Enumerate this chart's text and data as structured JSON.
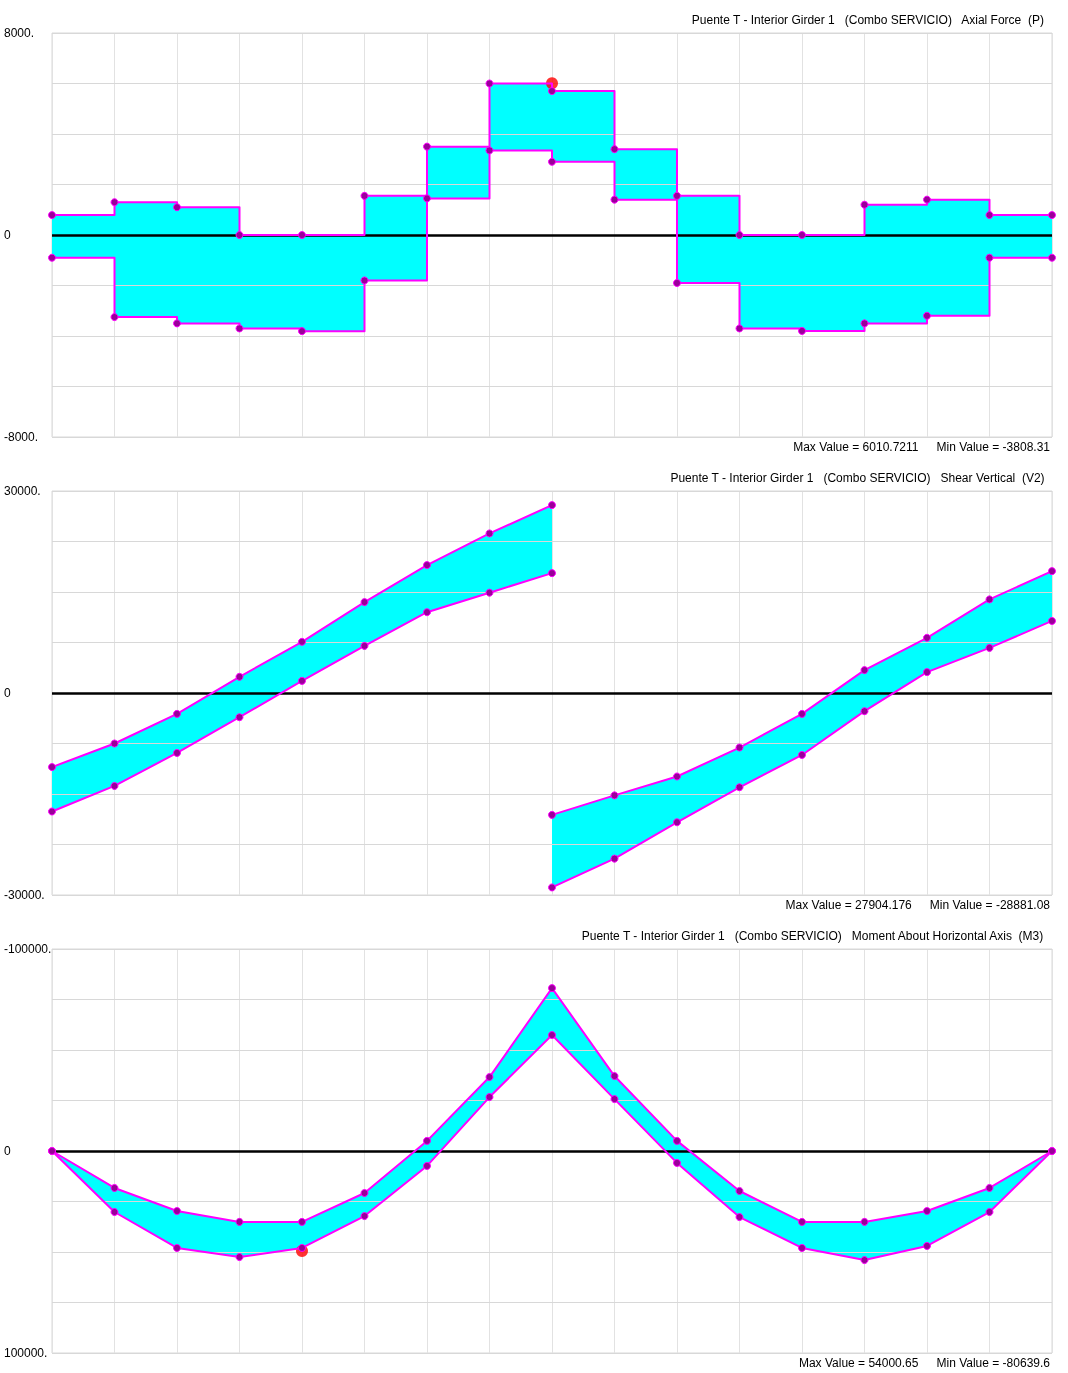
{
  "chart_data": [
    {
      "type": "step",
      "title": "Puente T - Interior Girder 1   (Combo SERVICIO)   Axial Force  (P)",
      "annotations": [
        "Max Value = 6010.7211",
        "Min Value = -3808.31"
      ],
      "categories": [
        null,
        null,
        null,
        null,
        null,
        null,
        null,
        null,
        null,
        null,
        null,
        null,
        null,
        null,
        null,
        null,
        null
      ],
      "ylim": [
        -8000,
        8000
      ],
      "yticks": [
        {
          "value": -8000,
          "label": "-8000."
        },
        {
          "value": -6000,
          "label": null
        },
        {
          "value": -4000,
          "label": null
        },
        {
          "value": -2000,
          "label": null
        },
        {
          "value": 0,
          "label": "0"
        },
        {
          "value": 2000,
          "label": null
        },
        {
          "value": 4000,
          "label": null
        },
        {
          "value": 6000,
          "label": null
        },
        {
          "value": 8000,
          "label": "8000."
        }
      ],
      "grid": true,
      "marker": "circle",
      "line_style": "solid",
      "ref_lines": [
        {
          "axis": "y",
          "value": 0,
          "color": "#000000"
        }
      ],
      "series": [
        {
          "color": "#ff00ff",
          "values": [
            790,
            1300,
            1100,
            0,
            0,
            1550,
            3500,
            6000,
            5700,
            3400,
            1550,
            0,
            0,
            1200,
            1400,
            790,
            790
          ],
          "upper": [
            790,
            1300,
            1100,
            0,
            0,
            1550,
            3500,
            6000,
            5700,
            3400,
            1550,
            0,
            0,
            1200,
            1400,
            790,
            790
          ],
          "lower": [
            -900,
            -3250,
            -3500,
            -3700,
            -3808.31,
            -1800,
            1450,
            3350,
            2900,
            1400,
            -1900,
            -3700,
            -3800,
            -3500,
            -3200,
            -900,
            -900
          ]
        },
        {
          "color": "#ff00ff",
          "values": [
            -900,
            -3250,
            -3500,
            -3700,
            -3808.31,
            -1800,
            1450,
            3350,
            2900,
            1400,
            -1900,
            -3700,
            -3800,
            -3500,
            -3200,
            -900,
            -900
          ]
        },
        {
          "type": "scatter",
          "color": "#ff0000",
          "values": [
            null,
            null,
            null,
            null,
            null,
            null,
            null,
            null,
            6010.7211,
            null,
            null,
            null,
            null,
            null,
            null,
            null,
            null
          ]
        }
      ]
    },
    {
      "type": "line",
      "title": "Puente T - Interior Girder 1   (Combo SERVICIO)   Shear Vertical  (V2)",
      "annotations": [
        "Max Value = 27904.176",
        "Min Value = -28881.08"
      ],
      "categories": [
        null,
        null,
        null,
        null,
        null,
        null,
        null,
        null,
        null,
        null,
        null,
        null,
        null,
        null,
        null,
        null,
        null
      ],
      "ylim": [
        -30000,
        30000
      ],
      "yticks": [
        {
          "value": -30000,
          "label": "-30000."
        },
        {
          "value": -22500,
          "label": null
        },
        {
          "value": -15000,
          "label": null
        },
        {
          "value": -7500,
          "label": null
        },
        {
          "value": 0,
          "label": "0"
        },
        {
          "value": 7500,
          "label": null
        },
        {
          "value": 15000,
          "label": null
        },
        {
          "value": 22500,
          "label": null
        },
        {
          "value": 30000,
          "label": "30000."
        }
      ],
      "grid": true,
      "marker": "circle",
      "line_style": "solid",
      "ref_lines": [
        {
          "axis": "y",
          "value": 0,
          "color": "#000000"
        }
      ],
      "series": [
        {
          "color": "#ff00ff",
          "values": [
            -11000,
            -7500,
            -3100,
            2400,
            7600,
            13500,
            19000,
            23700,
            27904.176,
            null,
            null,
            null,
            null,
            null,
            null,
            null,
            null
          ],
          "upper": [
            -11000,
            -7500,
            -3100,
            2400,
            7600,
            13500,
            19000,
            23700,
            27904.176,
            null,
            null,
            null,
            null,
            null,
            null,
            null,
            null
          ],
          "lower": [
            -17600,
            -13800,
            -8900,
            -3600,
            1800,
            7000,
            12000,
            14900,
            17800,
            null,
            null,
            null,
            null,
            null,
            null,
            null,
            null
          ]
        },
        {
          "color": "#ff00ff",
          "values": [
            -17600,
            -13800,
            -8900,
            -3600,
            1800,
            7000,
            12000,
            14900,
            17800,
            null,
            null,
            null,
            null,
            null,
            null,
            null,
            null
          ]
        },
        {
          "color": "#ff00ff",
          "values": [
            null,
            null,
            null,
            null,
            null,
            null,
            null,
            null,
            -18100,
            -15200,
            -12400,
            -8100,
            -3100,
            3400,
            8200,
            13900,
            18100
          ],
          "upper": [
            null,
            null,
            null,
            null,
            null,
            null,
            null,
            null,
            -18100,
            -15200,
            -12400,
            -8100,
            -3100,
            3400,
            8200,
            13900,
            18100
          ],
          "lower": [
            null,
            null,
            null,
            null,
            null,
            null,
            null,
            null,
            -28881.08,
            -24600,
            -19200,
            -14000,
            -9200,
            -2700,
            3100,
            6700,
            10700
          ]
        },
        {
          "color": "#ff00ff",
          "values": [
            null,
            null,
            null,
            null,
            null,
            null,
            null,
            null,
            -28881.08,
            -24600,
            -19200,
            -14000,
            -9200,
            -2700,
            3100,
            6700,
            10700
          ]
        }
      ]
    },
    {
      "type": "line",
      "title": "Puente T - Interior Girder 1   (Combo SERVICIO)   Moment About Horizontal Axis  (M3)",
      "annotations": [
        "Max Value = 54000.65",
        "Min Value = -80639.6"
      ],
      "categories": [
        null,
        null,
        null,
        null,
        null,
        null,
        null,
        null,
        null,
        null,
        null,
        null,
        null,
        null,
        null,
        null,
        null
      ],
      "ylim": [
        100000,
        -100000
      ],
      "yticks": [
        {
          "value": -100000,
          "label": "-100000."
        },
        {
          "value": -75000,
          "label": null
        },
        {
          "value": -50000,
          "label": null
        },
        {
          "value": -25000,
          "label": null
        },
        {
          "value": 0,
          "label": "0"
        },
        {
          "value": 25000,
          "label": null
        },
        {
          "value": 50000,
          "label": null
        },
        {
          "value": 75000,
          "label": null
        },
        {
          "value": 100000,
          "label": "100000."
        }
      ],
      "grid": true,
      "marker": "circle",
      "line_style": "solid",
      "ref_lines": [
        {
          "axis": "y",
          "value": 0,
          "color": "#000000"
        }
      ],
      "series": [
        {
          "color": "#ff00ff",
          "values": [
            0,
            18300,
            29700,
            35100,
            35100,
            20800,
            -5000,
            -36600,
            -80639.6,
            -37100,
            -5000,
            19800,
            35100,
            35100,
            29700,
            18300,
            0
          ],
          "upper": [
            0,
            18300,
            29700,
            35100,
            35100,
            20800,
            -5000,
            -36600,
            -80639.6,
            -37100,
            -5000,
            19800,
            35100,
            35100,
            29700,
            18300,
            0
          ],
          "lower": [
            0,
            30200,
            48000,
            52500,
            48000,
            32200,
            7400,
            -26700,
            -57400,
            -25700,
            5900,
            32700,
            48000,
            54000.65,
            47000,
            30200,
            0
          ]
        },
        {
          "color": "#ff00ff",
          "values": [
            0,
            30200,
            48000,
            52500,
            48000,
            32200,
            7400,
            -26700,
            -57400,
            -25700,
            5900,
            32700,
            48000,
            54000.65,
            47000,
            30200,
            0
          ]
        },
        {
          "type": "scatter",
          "color": "#ff0000",
          "values": [
            null,
            null,
            null,
            null,
            49500,
            null,
            null,
            null,
            null,
            null,
            null,
            null,
            null,
            null,
            null,
            null,
            null
          ]
        }
      ]
    }
  ]
}
